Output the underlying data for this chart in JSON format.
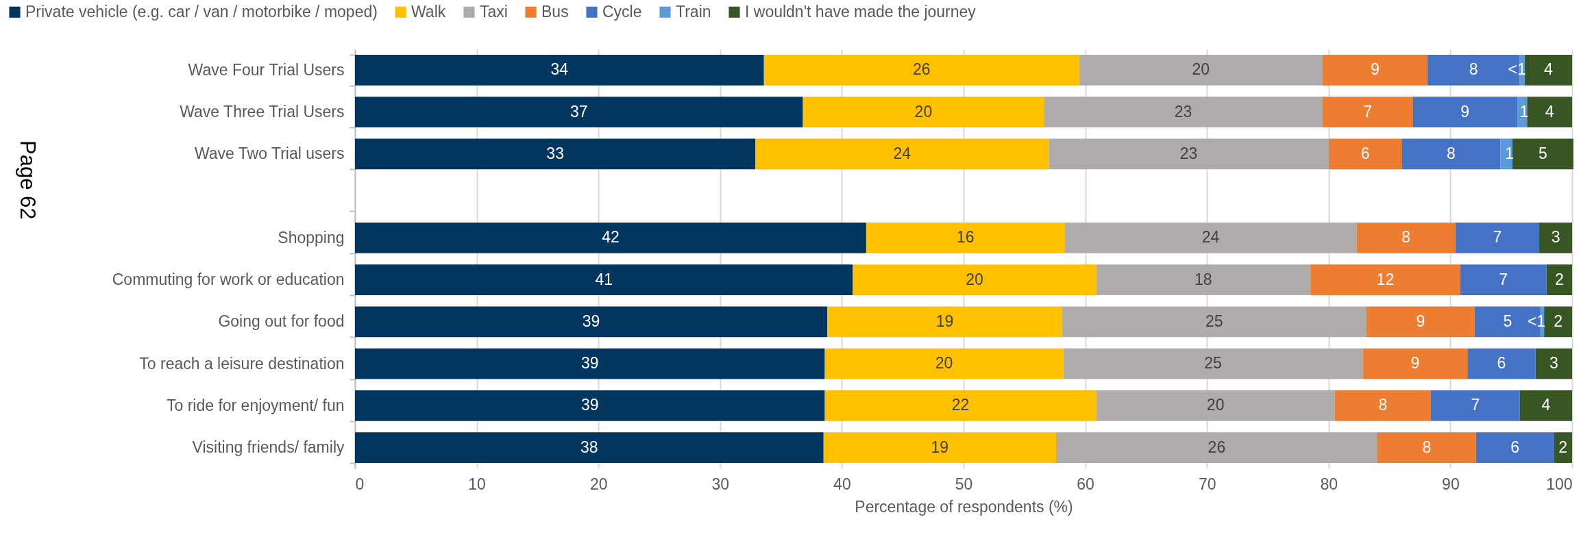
{
  "chart_data": {
    "type": "bar",
    "orientation": "horizontal",
    "stacked": true,
    "categories": [
      "Wave Four Trial Users",
      "Wave Three Trial Users",
      "Wave Two Trial users",
      null,
      "Shopping",
      "Commuting for work or education",
      "Going out for food",
      "To reach a leisure destination",
      "To ride for enjoyment/ fun",
      "Visiting friends/ family"
    ],
    "series": [
      {
        "name": "Private vehicle (e.g. car / van / motorbike / moped)",
        "color": "#003660",
        "values": [
          33.6,
          36.8,
          32.9,
          null,
          42.0,
          40.9,
          38.8,
          38.6,
          38.6,
          38.5
        ],
        "value_labels": [
          "34",
          "37",
          "33",
          null,
          "42",
          "41",
          "39",
          "39",
          "39",
          "38"
        ]
      },
      {
        "name": "Walk",
        "color": "#ffc000",
        "values": [
          25.9,
          19.8,
          24.1,
          null,
          16.3,
          20.0,
          19.3,
          19.6,
          22.3,
          19.1
        ],
        "value_labels": [
          "26",
          "20",
          "24",
          null,
          "16",
          "20",
          "19",
          "20",
          "22",
          "19"
        ]
      },
      {
        "name": "Taxi",
        "color": "#afabab",
        "values": [
          20.0,
          22.9,
          23.0,
          null,
          24.0,
          17.6,
          25.0,
          24.6,
          19.6,
          26.4
        ],
        "value_labels": [
          "20",
          "23",
          "23",
          null,
          "24",
          "18",
          "25",
          "25",
          "20",
          "26"
        ]
      },
      {
        "name": "Bus",
        "color": "#ed7d31",
        "values": [
          8.6,
          7.4,
          6.0,
          null,
          8.1,
          12.3,
          8.9,
          8.6,
          7.9,
          8.1
        ],
        "value_labels": [
          "9",
          "7",
          "6",
          null,
          "8",
          "12",
          "9",
          "9",
          "8",
          "8"
        ]
      },
      {
        "name": "Cycle",
        "color": "#4472c4",
        "values": [
          7.6,
          8.6,
          8.1,
          null,
          6.9,
          7.1,
          5.4,
          5.6,
          7.3,
          6.4
        ],
        "value_labels": [
          "8",
          "9",
          "8",
          null,
          "7",
          "7",
          "5",
          "6",
          "7",
          "6"
        ]
      },
      {
        "name": "Train",
        "color": "#5b9bd5",
        "values": [
          0.4,
          0.8,
          1.0,
          null,
          null,
          null,
          0.3,
          null,
          null,
          null
        ],
        "value_labels": [
          "<1",
          "1",
          "1",
          null,
          null,
          null,
          "<1",
          null,
          null,
          null
        ]
      },
      {
        "name": "I wouldn't have made the journey",
        "color": "#375623",
        "values": [
          3.9,
          3.7,
          5.0,
          null,
          2.7,
          2.1,
          2.3,
          3.0,
          4.3,
          1.5
        ],
        "value_labels": [
          "4",
          "4",
          "5",
          null,
          "3",
          "2",
          "2",
          "3",
          "4",
          "2"
        ]
      }
    ],
    "xlabel": "Percentage of respondents (%)",
    "xlim": [
      0,
      100
    ],
    "xticks": [
      0,
      10,
      20,
      30,
      40,
      50,
      60,
      70,
      80,
      90,
      100
    ],
    "grid": "x",
    "legend": "top",
    "annotations": [
      "Page 62"
    ]
  }
}
